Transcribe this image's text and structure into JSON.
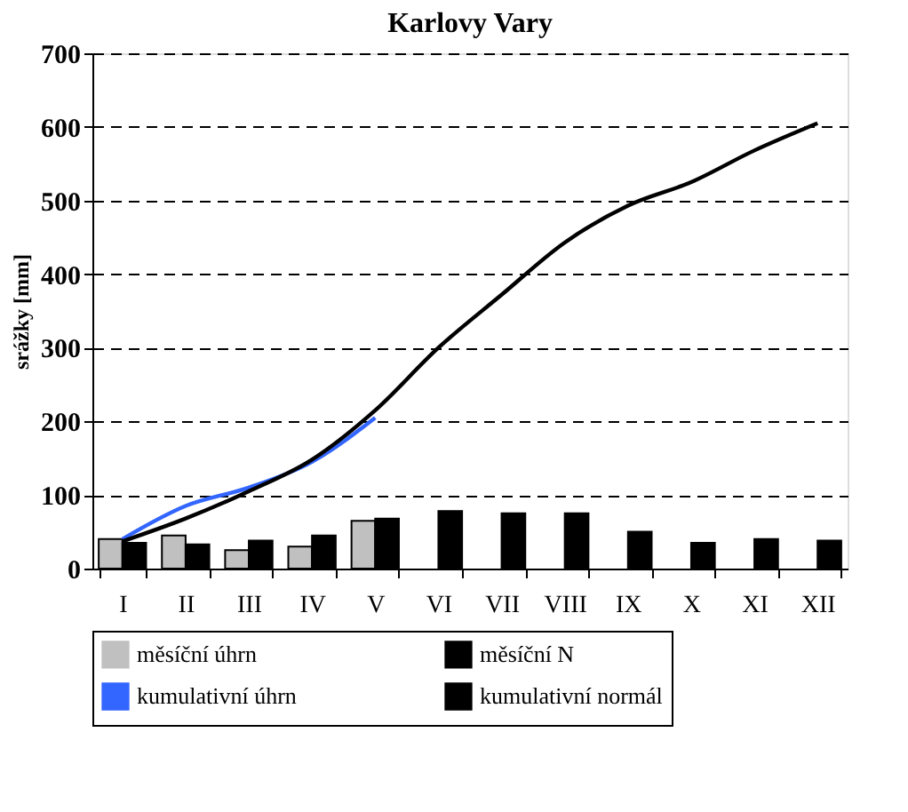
{
  "chart_data": {
    "type": "bar",
    "title": "Karlovy Vary",
    "ylabel": "srážky [mm]",
    "categories": [
      "I",
      "II",
      "III",
      "IV",
      "V",
      "VI",
      "VII",
      "VIII",
      "IX",
      "X",
      "XI",
      "XII"
    ],
    "series": [
      {
        "name": "měsíční úhrn",
        "color": "#c0c0c0",
        "values": [
          40,
          45,
          25,
          30,
          65,
          null,
          null,
          null,
          null,
          null,
          null,
          null
        ]
      },
      {
        "name": "měsíční N",
        "color": "#000000",
        "values": [
          35,
          33,
          38,
          45,
          68,
          78,
          75,
          75,
          50,
          35,
          40,
          38
        ]
      },
      {
        "name": "kumulativní úhrn",
        "type": "line",
        "color": "#3366ff",
        "values": [
          40,
          85,
          110,
          145,
          205,
          null,
          null,
          null,
          null,
          null,
          null,
          null
        ]
      },
      {
        "name": "kumulativní normál",
        "type": "line",
        "color": "#000000",
        "values": [
          37,
          68,
          105,
          148,
          215,
          300,
          372,
          443,
          493,
          525,
          568,
          605
        ]
      }
    ],
    "ylim": [
      0,
      700
    ],
    "yticks": [
      0,
      100,
      200,
      300,
      400,
      500,
      600,
      700
    ],
    "grid": "y",
    "legend": "bottom",
    "line_style": "solid",
    "marker": "none"
  }
}
